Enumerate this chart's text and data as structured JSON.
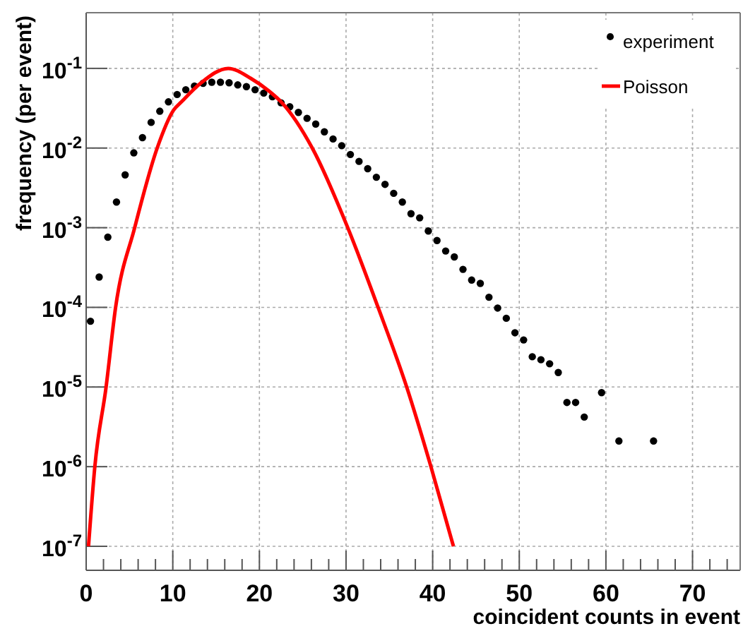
{
  "chart_data": {
    "type": "scatter",
    "xlabel": "coincident counts in event",
    "ylabel": "frequency (per event)",
    "log": "y",
    "grid": true,
    "legend": "top right",
    "xlim": [
      0,
      75.5
    ],
    "ylim": [
      5e-08,
      0.5
    ],
    "xticks": [
      0,
      {
        "value": 2,
        "label": null
      },
      {
        "value": 4,
        "label": null
      },
      {
        "value": 6,
        "label": null
      },
      {
        "value": 8,
        "label": null
      },
      10,
      {
        "value": 12,
        "label": null
      },
      {
        "value": 14,
        "label": null
      },
      {
        "value": 16,
        "label": null
      },
      {
        "value": 18,
        "label": null
      },
      20,
      {
        "value": 22,
        "label": null
      },
      {
        "value": 24,
        "label": null
      },
      {
        "value": 26,
        "label": null
      },
      {
        "value": 28,
        "label": null
      },
      30,
      {
        "value": 32,
        "label": null
      },
      {
        "value": 34,
        "label": null
      },
      {
        "value": 36,
        "label": null
      },
      {
        "value": 38,
        "label": null
      },
      40,
      {
        "value": 42,
        "label": null
      },
      {
        "value": 44,
        "label": null
      },
      {
        "value": 46,
        "label": null
      },
      {
        "value": 48,
        "label": null
      },
      50,
      {
        "value": 52,
        "label": null
      },
      {
        "value": 54,
        "label": null
      },
      {
        "value": 56,
        "label": null
      },
      {
        "value": 58,
        "label": null
      },
      60,
      {
        "value": 62,
        "label": null
      },
      {
        "value": 64,
        "label": null
      },
      {
        "value": 66,
        "label": null
      },
      {
        "value": 68,
        "label": null
      },
      70,
      {
        "value": 72,
        "label": null
      },
      {
        "value": 74,
        "label": null
      }
    ],
    "yticks": [
      {
        "value": 1e-07,
        "label": "10$^{-7}$"
      },
      {
        "value": 1e-06,
        "label": "10$^{-6}$"
      },
      {
        "value": 1e-05,
        "label": "10$^{-5}$"
      },
      {
        "value": 0.0001,
        "label": "10$^{-4}$"
      },
      {
        "value": 0.001,
        "label": "10$^{-3}$"
      },
      {
        "value": 0.01,
        "label": "10$^{-2}$"
      },
      {
        "value": 0.1,
        "label": "10$^{-1}$"
      }
    ],
    "series": [
      {
        "name": "experiment",
        "color": "#000000",
        "marker": "circle",
        "x": [
          0.5,
          1.5,
          2.5,
          3.5,
          4.5,
          5.5,
          6.5,
          7.5,
          8.5,
          9.5,
          10.5,
          11.5,
          12.5,
          13.5,
          14.5,
          15.5,
          16.5,
          17.5,
          18.5,
          19.5,
          20.5,
          21.5,
          22.5,
          23.5,
          24.5,
          25.5,
          26.5,
          27.5,
          28.5,
          29.5,
          30.5,
          31.5,
          32.5,
          33.5,
          34.5,
          35.5,
          36.5,
          37.5,
          38.5,
          39.5,
          40.5,
          41.5,
          42.5,
          43.5,
          44.5,
          45.5,
          46.5,
          47.5,
          48.5,
          49.5,
          50.5,
          51.5,
          52.5,
          53.5,
          54.5,
          55.5,
          56.5,
          57.5,
          59.5,
          61.5,
          65.5
        ],
        "values": [
          6.7e-05,
          0.00024,
          0.00076,
          0.0021,
          0.0046,
          0.0087,
          0.0135,
          0.021,
          0.029,
          0.038,
          0.047,
          0.054,
          0.06,
          0.065,
          0.067,
          0.067,
          0.066,
          0.062,
          0.059,
          0.054,
          0.049,
          0.044,
          0.037,
          0.033,
          0.028,
          0.0236,
          0.02,
          0.016,
          0.013,
          0.0107,
          0.0083,
          0.0068,
          0.0055,
          0.0043,
          0.0035,
          0.0027,
          0.0021,
          0.0015,
          0.00133,
          0.00091,
          0.00069,
          0.00051,
          0.00043,
          0.0003,
          0.00022,
          0.0002,
          0.000134,
          9.8e-05,
          7.3e-05,
          4.8e-05,
          3.9e-05,
          2.4e-05,
          2.2e-05,
          1.96e-05,
          1.52e-05,
          6.4e-06,
          6.4e-06,
          4.2e-06,
          8.5e-06,
          2.1e-06,
          2.1e-06
        ]
      },
      {
        "name": "Poisson",
        "type": "line",
        "color": "#ff0000",
        "marker": "none",
        "line_style": "solid",
        "x": [
          0.27,
          1.0,
          2.3,
          3.4,
          5.6,
          8.2,
          10.1,
          11,
          13.2,
          16.4,
          19,
          21,
          22.6,
          26.1,
          30.2,
          33.7,
          37,
          39.8,
          42.4
        ],
        "values": [
          1e-07,
          1e-06,
          1e-05,
          0.0001,
          0.001,
          0.01,
          0.03,
          0.038,
          0.065,
          0.1,
          0.075,
          0.053,
          0.037,
          0.01,
          0.001,
          0.0001,
          1e-05,
          1e-06,
          1e-07
        ]
      }
    ]
  }
}
